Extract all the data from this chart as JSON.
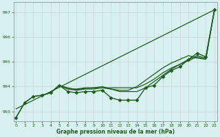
{
  "bg_color": "#d8f0f0",
  "grid_color": "#c8d4d4",
  "line_color": "#1a5c1a",
  "xlabel": "Graphe pression niveau de la mer (hPa)",
  "ylim": [
    992.6,
    997.4
  ],
  "xlim": [
    -0.3,
    23.3
  ],
  "yticks": [
    993,
    994,
    995,
    996,
    997
  ],
  "xticks": [
    0,
    1,
    2,
    3,
    4,
    5,
    6,
    7,
    8,
    9,
    10,
    11,
    12,
    13,
    14,
    15,
    16,
    17,
    18,
    19,
    20,
    21,
    22,
    23
  ],
  "series": [
    {
      "x": [
        0,
        1,
        2,
        3,
        4,
        5,
        6,
        7,
        8,
        9,
        10,
        11,
        12,
        13,
        14,
        15,
        16,
        17,
        18,
        19,
        20,
        21,
        22,
        23
      ],
      "y": [
        992.75,
        993.35,
        993.6,
        993.65,
        993.75,
        994.05,
        993.8,
        993.75,
        993.8,
        993.8,
        993.85,
        993.55,
        993.45,
        993.45,
        993.45,
        993.95,
        994.05,
        994.4,
        994.65,
        994.8,
        995.1,
        995.35,
        995.2,
        997.1
      ],
      "marker": "D",
      "markersize": 2.5,
      "linewidth": 1.0
    },
    {
      "x": [
        0,
        1,
        2,
        3,
        4,
        5,
        6,
        7,
        8,
        9,
        10,
        11,
        12,
        13,
        14,
        15,
        16,
        17,
        18,
        19,
        20,
        21,
        22,
        23
      ],
      "y": [
        992.75,
        993.35,
        993.6,
        993.65,
        993.75,
        994.05,
        993.9,
        993.9,
        993.95,
        993.95,
        993.95,
        993.95,
        993.95,
        993.95,
        993.95,
        994.1,
        994.3,
        994.55,
        994.75,
        994.9,
        995.1,
        995.25,
        995.15,
        997.1
      ],
      "marker": null,
      "markersize": 0,
      "linewidth": 0.9
    },
    {
      "x": [
        0,
        23
      ],
      "y": [
        993.1,
        997.1
      ],
      "marker": null,
      "markersize": 0,
      "linewidth": 0.9
    },
    {
      "x": [
        4,
        5,
        6,
        7,
        8,
        9,
        10,
        11,
        12,
        13,
        14,
        15,
        16,
        17,
        18,
        19,
        20,
        21,
        22,
        23
      ],
      "y": [
        993.75,
        994.05,
        993.9,
        993.85,
        993.9,
        993.9,
        993.95,
        993.9,
        993.8,
        993.8,
        993.8,
        993.95,
        994.2,
        994.45,
        994.7,
        994.9,
        995.05,
        995.2,
        995.1,
        997.1
      ],
      "marker": null,
      "markersize": 0,
      "linewidth": 0.9
    },
    {
      "x": [
        3,
        4,
        5,
        6,
        7,
        8,
        9,
        10,
        11,
        12,
        13,
        14,
        15,
        16,
        17,
        18,
        19,
        20,
        21,
        22,
        23
      ],
      "y": [
        993.65,
        993.75,
        994.05,
        993.95,
        993.88,
        993.92,
        993.95,
        994.0,
        993.9,
        993.85,
        993.85,
        994.0,
        994.25,
        994.5,
        994.75,
        994.95,
        995.1,
        995.25,
        995.15,
        995.1,
        997.1
      ],
      "marker": null,
      "markersize": 0,
      "linewidth": 0.9
    }
  ]
}
